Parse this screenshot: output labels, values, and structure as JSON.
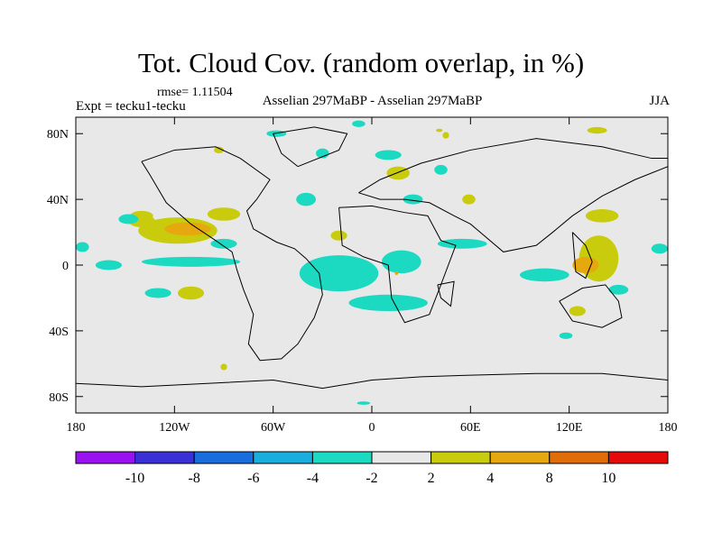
{
  "chart_data": {
    "type": "heatmap",
    "title": "Tot. Cloud Cov. (random overlap, in %)",
    "rmse_label": "rmse= 1.11504",
    "experiment_label": "Expt = tecku1-tecku",
    "case_label": "Asselian 297MaBP - Asselian 297MaBP",
    "season_label": "JJA",
    "x_ticks": [
      {
        "value": -180,
        "label": "180"
      },
      {
        "value": -120,
        "label": "120W"
      },
      {
        "value": -60,
        "label": "60W"
      },
      {
        "value": 0,
        "label": "0"
      },
      {
        "value": 60,
        "label": "60E"
      },
      {
        "value": 120,
        "label": "120E"
      },
      {
        "value": 180,
        "label": "180"
      }
    ],
    "y_ticks": [
      {
        "value": 80,
        "label": "80N"
      },
      {
        "value": 40,
        "label": "40N"
      },
      {
        "value": 0,
        "label": "0"
      },
      {
        "value": -40,
        "label": "40S"
      },
      {
        "value": -80,
        "label": "80S"
      }
    ],
    "xlim": [
      -180,
      180
    ],
    "ylim": [
      -90,
      90
    ],
    "colorbar": {
      "colors": [
        "#9b12f0",
        "#3a30d6",
        "#1a6ddc",
        "#1aaedf",
        "#1cd9c2",
        "#e8e8e8",
        "#c8cc0c",
        "#e5a90f",
        "#e16c0a",
        "#e50b0b"
      ],
      "labels": [
        "-10",
        "-8",
        "-6",
        "-4",
        "-2",
        "2",
        "4",
        "8",
        "10"
      ]
    },
    "anomaly_regions": [
      {
        "lon": -118,
        "lat": 21,
        "rx": 24,
        "ry": 8,
        "color": "#c8cc0c"
      },
      {
        "lon": -112,
        "lat": 22,
        "rx": 14,
        "ry": 4,
        "color": "#e5a90f"
      },
      {
        "lon": -90,
        "lat": 31,
        "rx": 10,
        "ry": 4,
        "color": "#c8cc0c"
      },
      {
        "lon": -140,
        "lat": 27,
        "rx": 8,
        "ry": 4,
        "color": "#c8cc0c"
      },
      {
        "lon": -140,
        "lat": 30,
        "rx": 7,
        "ry": 3,
        "color": "#c8cc0c"
      },
      {
        "lon": -148,
        "lat": 28,
        "rx": 6,
        "ry": 3,
        "color": "#1cd9c2"
      },
      {
        "lon": -110,
        "lat": 2,
        "rx": 30,
        "ry": 3,
        "color": "#1cd9c2"
      },
      {
        "lon": -160,
        "lat": 0,
        "rx": 8,
        "ry": 3,
        "color": "#1cd9c2"
      },
      {
        "lon": -176,
        "lat": 11,
        "rx": 4,
        "ry": 3,
        "color": "#1cd9c2"
      },
      {
        "lon": -130,
        "lat": -17,
        "rx": 8,
        "ry": 3,
        "color": "#1cd9c2"
      },
      {
        "lon": -110,
        "lat": -17,
        "rx": 8,
        "ry": 4,
        "color": "#c8cc0c"
      },
      {
        "lon": -90,
        "lat": 13,
        "rx": 8,
        "ry": 3,
        "color": "#1cd9c2"
      },
      {
        "lon": -20,
        "lat": -5,
        "rx": 24,
        "ry": 11,
        "color": "#1cd9c2"
      },
      {
        "lon": 10,
        "lat": -23,
        "rx": 24,
        "ry": 5,
        "color": "#1cd9c2"
      },
      {
        "lon": 18,
        "lat": 2,
        "rx": 12,
        "ry": 7,
        "color": "#1cd9c2"
      },
      {
        "lon": 15,
        "lat": -5,
        "rx": 1,
        "ry": 1,
        "color": "#e5a90f"
      },
      {
        "lon": -40,
        "lat": 40,
        "rx": 6,
        "ry": 4,
        "color": "#1cd9c2"
      },
      {
        "lon": -20,
        "lat": 18,
        "rx": 5,
        "ry": 3,
        "color": "#c8cc0c"
      },
      {
        "lon": 55,
        "lat": 13,
        "rx": 15,
        "ry": 3,
        "color": "#1cd9c2"
      },
      {
        "lon": 10,
        "lat": 67,
        "rx": 8,
        "ry": 3,
        "color": "#1cd9c2"
      },
      {
        "lon": 16,
        "lat": 56,
        "rx": 7,
        "ry": 4,
        "color": "#c8cc0c"
      },
      {
        "lon": 42,
        "lat": 58,
        "rx": 4,
        "ry": 3,
        "color": "#1cd9c2"
      },
      {
        "lon": 25,
        "lat": 40,
        "rx": 6,
        "ry": 3,
        "color": "#1cd9c2"
      },
      {
        "lon": 59,
        "lat": 40,
        "rx": 4,
        "ry": 3,
        "color": "#c8cc0c"
      },
      {
        "lon": -30,
        "lat": 68,
        "rx": 4,
        "ry": 3,
        "color": "#1cd9c2"
      },
      {
        "lon": 45,
        "lat": 79,
        "rx": 2,
        "ry": 2,
        "color": "#c8cc0c"
      },
      {
        "lon": 41,
        "lat": 82,
        "rx": 2,
        "ry": 1,
        "color": "#c8cc0c"
      },
      {
        "lon": -58,
        "lat": 80,
        "rx": 6,
        "ry": 2,
        "color": "#1cd9c2"
      },
      {
        "lon": -93,
        "lat": 70,
        "rx": 3,
        "ry": 2,
        "color": "#c8cc0c"
      },
      {
        "lon": -8,
        "lat": 86,
        "rx": 4,
        "ry": 2,
        "color": "#1cd9c2"
      },
      {
        "lon": 138,
        "lat": 4,
        "rx": 12,
        "ry": 14,
        "color": "#c8cc0c"
      },
      {
        "lon": 130,
        "lat": 0,
        "rx": 8,
        "ry": 5,
        "color": "#e5a90f"
      },
      {
        "lon": 105,
        "lat": -6,
        "rx": 15,
        "ry": 4,
        "color": "#1cd9c2"
      },
      {
        "lon": 140,
        "lat": 30,
        "rx": 10,
        "ry": 4,
        "color": "#c8cc0c"
      },
      {
        "lon": 150,
        "lat": -15,
        "rx": 6,
        "ry": 3,
        "color": "#1cd9c2"
      },
      {
        "lon": 175,
        "lat": 10,
        "rx": 5,
        "ry": 3,
        "color": "#1cd9c2"
      },
      {
        "lon": 125,
        "lat": -28,
        "rx": 5,
        "ry": 3,
        "color": "#c8cc0c"
      },
      {
        "lon": 118,
        "lat": -43,
        "rx": 4,
        "ry": 2,
        "color": "#1cd9c2"
      },
      {
        "lon": -90,
        "lat": -62,
        "rx": 2,
        "ry": 2,
        "color": "#c8cc0c"
      },
      {
        "lon": 137,
        "lat": 82,
        "rx": 6,
        "ry": 2,
        "color": "#c8cc0c"
      },
      {
        "lon": -5,
        "lat": -84,
        "rx": 4,
        "ry": 1,
        "color": "#1cd9c2"
      }
    ],
    "coastlines": [
      [
        [
          -140,
          63
        ],
        [
          -120,
          70
        ],
        [
          -95,
          72
        ],
        [
          -80,
          65
        ],
        [
          -62,
          52
        ],
        [
          -70,
          40
        ],
        [
          -76,
          33
        ],
        [
          -72,
          22
        ],
        [
          -58,
          14
        ],
        [
          -47,
          10
        ],
        [
          -40,
          4
        ],
        [
          -32,
          -5
        ],
        [
          -30,
          -18
        ],
        [
          -35,
          -32
        ],
        [
          -45,
          -48
        ],
        [
          -55,
          -57
        ],
        [
          -68,
          -58
        ],
        [
          -75,
          -48
        ],
        [
          -72,
          -30
        ],
        [
          -78,
          -15
        ],
        [
          -82,
          -3
        ],
        [
          -85,
          8
        ],
        [
          -95,
          15
        ],
        [
          -110,
          25
        ],
        [
          -125,
          38
        ],
        [
          -135,
          55
        ],
        [
          -140,
          63
        ]
      ],
      [
        [
          -20,
          35
        ],
        [
          0,
          36
        ],
        [
          20,
          32
        ],
        [
          34,
          30
        ],
        [
          42,
          15
        ],
        [
          51,
          12
        ],
        [
          42,
          -12
        ],
        [
          35,
          -30
        ],
        [
          20,
          -35
        ],
        [
          12,
          -20
        ],
        [
          10,
          0
        ],
        [
          -5,
          5
        ],
        [
          -18,
          12
        ],
        [
          -20,
          35
        ]
      ],
      [
        [
          -8,
          44
        ],
        [
          5,
          52
        ],
        [
          30,
          62
        ],
        [
          60,
          70
        ],
        [
          100,
          77
        ],
        [
          140,
          72
        ],
        [
          170,
          65
        ],
        [
          180,
          65
        ],
        [
          180,
          60
        ],
        [
          160,
          52
        ],
        [
          140,
          42
        ],
        [
          122,
          30
        ],
        [
          110,
          20
        ],
        [
          100,
          12
        ],
        [
          80,
          8
        ],
        [
          60,
          25
        ],
        [
          50,
          30
        ],
        [
          35,
          38
        ],
        [
          20,
          40
        ],
        [
          5,
          40
        ],
        [
          -8,
          44
        ]
      ],
      [
        [
          -45,
          60
        ],
        [
          -20,
          70
        ],
        [
          -15,
          80
        ],
        [
          -35,
          84
        ],
        [
          -60,
          80
        ],
        [
          -55,
          68
        ],
        [
          -45,
          60
        ]
      ],
      [
        [
          -180,
          -72
        ],
        [
          -140,
          -74
        ],
        [
          -100,
          -72
        ],
        [
          -60,
          -70
        ],
        [
          -30,
          -75
        ],
        [
          0,
          -70
        ],
        [
          30,
          -68
        ],
        [
          60,
          -67
        ],
        [
          100,
          -66
        ],
        [
          140,
          -66
        ],
        [
          180,
          -70
        ]
      ],
      [
        [
          114,
          -22
        ],
        [
          128,
          -14
        ],
        [
          142,
          -12
        ],
        [
          150,
          -22
        ],
        [
          152,
          -32
        ],
        [
          140,
          -38
        ],
        [
          122,
          -34
        ],
        [
          114,
          -22
        ]
      ],
      [
        [
          122,
          20
        ],
        [
          130,
          12
        ],
        [
          134,
          2
        ],
        [
          130,
          -8
        ],
        [
          124,
          -4
        ],
        [
          122,
          20
        ]
      ],
      [
        [
          40,
          -12
        ],
        [
          50,
          -10
        ],
        [
          48,
          -25
        ],
        [
          42,
          -20
        ],
        [
          40,
          -12
        ]
      ]
    ]
  }
}
